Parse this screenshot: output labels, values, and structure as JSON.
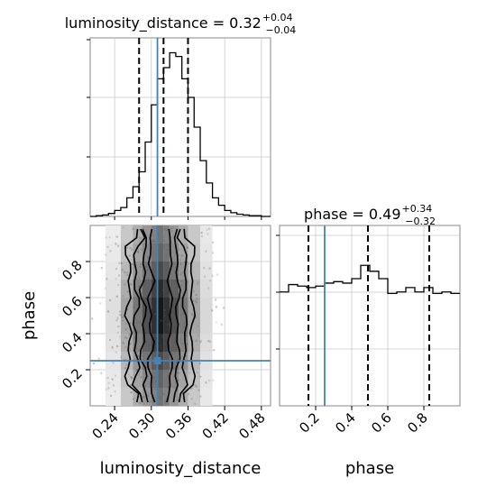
{
  "chart_data": {
    "type": "corner",
    "parameters": [
      "luminosity_distance",
      "phase"
    ],
    "titles": {
      "luminosity_distance": {
        "label": "luminosity_distance = 0.32",
        "plus": "+0.04",
        "minus": "−0.04"
      },
      "phase": {
        "label": "phase = 0.49",
        "plus": "+0.34",
        "minus": "−0.32"
      }
    },
    "xlabel_left": "luminosity_distance",
    "xlabel_right": "phase",
    "ylabel_left": "phase",
    "xticks_luminosity_distance": [
      "0.24",
      "0.30",
      "0.36",
      "0.42",
      "0.48"
    ],
    "xticks_phase": [
      "0.2",
      "0.4",
      "0.6",
      "0.8"
    ],
    "yticks_phase": [
      "0.2",
      "0.4",
      "0.6",
      "0.8"
    ],
    "xlim_luminosity_distance": [
      0.2,
      0.495
    ],
    "xlim_phase": [
      0.0,
      1.0
    ],
    "ylim_phase": [
      0.0,
      1.0
    ],
    "truths": {
      "luminosity_distance": 0.31,
      "phase": 0.25
    },
    "quantiles": {
      "luminosity_distance": [
        0.28,
        0.32,
        0.36
      ],
      "phase": [
        0.16,
        0.49,
        0.83
      ]
    },
    "hist_luminosity_distance": {
      "bin_edges": [
        0.2,
        0.21,
        0.22,
        0.23,
        0.24,
        0.25,
        0.26,
        0.27,
        0.28,
        0.29,
        0.3,
        0.31,
        0.32,
        0.33,
        0.34,
        0.35,
        0.36,
        0.37,
        0.38,
        0.39,
        0.4,
        0.41,
        0.42,
        0.43,
        0.44,
        0.45,
        0.46,
        0.47,
        0.48,
        0.49,
        0.495
      ],
      "counts": [
        0,
        1,
        2,
        4,
        8,
        12,
        25,
        40,
        60,
        100,
        150,
        185,
        200,
        220,
        215,
        185,
        160,
        120,
        75,
        45,
        25,
        15,
        8,
        5,
        3,
        2,
        1,
        1,
        0,
        0
      ]
    },
    "hist_phase": {
      "bin_edges": [
        0.0,
        0.05,
        0.1,
        0.15,
        0.2,
        0.25,
        0.3,
        0.35,
        0.4,
        0.45,
        0.5,
        0.55,
        0.6,
        0.65,
        0.7,
        0.75,
        0.8,
        0.85,
        0.9,
        0.95,
        1.0
      ],
      "counts": [
        0.77,
        0.82,
        0.81,
        0.8,
        0.81,
        0.83,
        0.84,
        0.83,
        0.86,
        0.95,
        0.91,
        0.86,
        0.76,
        0.77,
        0.8,
        0.77,
        0.8,
        0.76,
        0.77,
        0.76
      ]
    },
    "density_2d": {
      "x_bin_edges": [
        0.2,
        0.225,
        0.25,
        0.27,
        0.285,
        0.3,
        0.31,
        0.32,
        0.33,
        0.345,
        0.36,
        0.38,
        0.4,
        0.42,
        0.45,
        0.495
      ],
      "y_bin_edges": [
        0.0,
        0.1,
        0.2,
        0.3,
        0.4,
        0.5,
        0.6,
        0.7,
        0.8,
        0.9,
        1.0
      ],
      "levels": [
        0.04,
        0.08,
        0.18,
        0.32,
        0.52,
        0.62,
        0.32,
        0.32,
        0.18,
        0.08,
        0.04
      ],
      "contour_half_widths": [
        0.052,
        0.04,
        0.028,
        0.016
      ],
      "contour_center": 0.315
    }
  }
}
